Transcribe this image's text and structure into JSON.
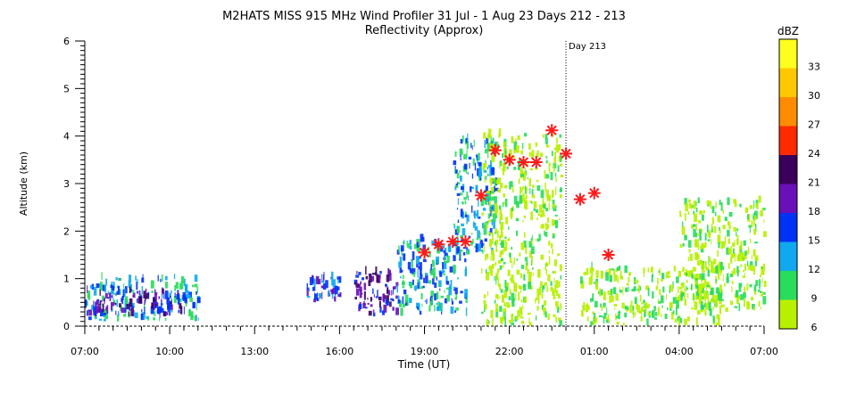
{
  "chart_data": {
    "type": "scatter",
    "title": "M2HATS MISS 915 MHz Wind Profiler  31 Jul -  1 Aug 23 Days 212 - 213",
    "subtitle": "Reflectivity (Approx)",
    "xlabel": "Time (UT)",
    "ylabel": "Altitude (km)",
    "x_ticks": [
      "07:00",
      "10:00",
      "13:00",
      "16:00",
      "19:00",
      "22:00",
      "01:00",
      "04:00",
      "07:00"
    ],
    "y_ticks": [
      "0",
      "1",
      "2",
      "3",
      "4",
      "5",
      "6"
    ],
    "xlim_hours": [
      0,
      24
    ],
    "ylim": [
      0,
      6
    ],
    "day_marker": {
      "label": "Day 213",
      "x_hours": 17
    },
    "colorbar": {
      "unit": "dBZ",
      "tick_labels": [
        "6",
        "9",
        "12",
        "15",
        "18",
        "21",
        "24",
        "27",
        "30",
        "33"
      ],
      "colors": [
        "#b8f000",
        "#28dc5c",
        "#10a8ee",
        "#0032f5",
        "#6a10b8",
        "#3a005a",
        "#ff2a00",
        "#ff8c00",
        "#ffc800",
        "#ffff1e"
      ]
    },
    "markers": {
      "symbol": "asterisk",
      "color": "#ff1a1a",
      "points": [
        {
          "x": 12.0,
          "y": 1.55
        },
        {
          "x": 12.5,
          "y": 1.72
        },
        {
          "x": 13.0,
          "y": 1.78
        },
        {
          "x": 13.45,
          "y": 1.78
        },
        {
          "x": 14.0,
          "y": 2.75
        },
        {
          "x": 14.5,
          "y": 3.7
        },
        {
          "x": 15.0,
          "y": 3.5
        },
        {
          "x": 15.5,
          "y": 3.45
        },
        {
          "x": 15.95,
          "y": 3.45
        },
        {
          "x": 16.5,
          "y": 4.12
        },
        {
          "x": 17.0,
          "y": 3.63
        },
        {
          "x": 17.5,
          "y": 2.67
        },
        {
          "x": 18.0,
          "y": 2.8
        },
        {
          "x": 18.5,
          "y": 1.5
        }
      ]
    },
    "echo_regions": [
      {
        "x0": 0.0,
        "x1": 4.0,
        "y0": 0.1,
        "y1": 1.0,
        "level": 2
      },
      {
        "x0": 0.0,
        "x1": 3.5,
        "y0": 0.2,
        "y1": 0.7,
        "level": 4
      },
      {
        "x0": 7.8,
        "x1": 9.0,
        "y0": 0.5,
        "y1": 1.0,
        "level": 3
      },
      {
        "x0": 9.5,
        "x1": 11.0,
        "y0": 0.2,
        "y1": 1.1,
        "level": 4
      },
      {
        "x0": 11.0,
        "x1": 13.5,
        "y0": 0.2,
        "y1": 1.8,
        "level": 2
      },
      {
        "x0": 13.0,
        "x1": 14.5,
        "y0": 1.5,
        "y1": 3.9,
        "level": 2
      },
      {
        "x0": 14.0,
        "x1": 16.8,
        "y0": 0.0,
        "y1": 4.0,
        "level": 0
      },
      {
        "x0": 17.5,
        "x1": 22.5,
        "y0": 0.0,
        "y1": 1.2,
        "level": 0
      },
      {
        "x0": 21.0,
        "x1": 24.0,
        "y0": 0.3,
        "y1": 2.6,
        "level": 0
      }
    ]
  }
}
